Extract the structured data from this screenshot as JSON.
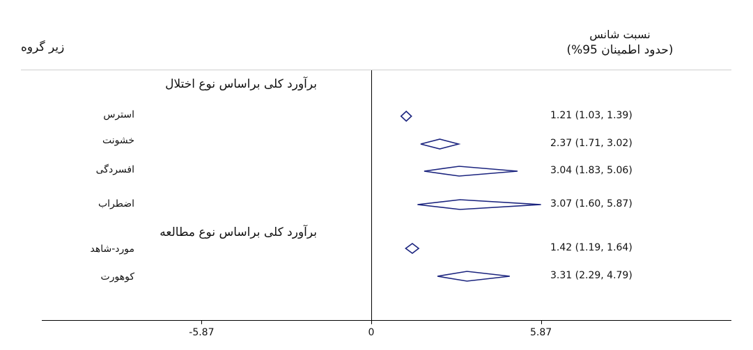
{
  "header": {
    "subgroup": "زیر گروه",
    "odds_ratio_line1": "نسبت شانس",
    "odds_ratio_line2": "(حدود اطمینان 95%)"
  },
  "chart_data": {
    "type": "forest",
    "null_value": 0,
    "xlim": [
      -10.8,
      11.1
    ],
    "x_ticks": [
      -5.87,
      0,
      5.87
    ],
    "x_tick_labels": [
      "-5.87",
      "0",
      "5.87"
    ],
    "rows": [
      {
        "kind": "section",
        "label": "برآورد کلی براساس نوع اختلال"
      },
      {
        "kind": "item",
        "label": "استرس",
        "or": 1.21,
        "lower": 1.03,
        "upper": 1.39,
        "text": "1.21 (1.03, 1.39)"
      },
      {
        "kind": "item",
        "label": "خشونت",
        "or": 2.37,
        "lower": 1.71,
        "upper": 3.02,
        "text": "2.37 (1.71, 3.02)"
      },
      {
        "kind": "item",
        "label": "افسردگی",
        "or": 3.04,
        "lower": 1.83,
        "upper": 5.06,
        "text": "3.04 (1.83, 5.06)"
      },
      {
        "kind": "item",
        "label": "اضطراب",
        "or": 3.07,
        "lower": 1.6,
        "upper": 5.87,
        "text": "3.07 (1.60, 5.87)"
      },
      {
        "kind": "section",
        "label": "برآورد کلی براساس نوع مطالعه"
      },
      {
        "kind": "item",
        "label": "مورد-شاهد",
        "or": 1.42,
        "lower": 1.19,
        "upper": 1.64,
        "text": "1.42 (1.19, 1.64)"
      },
      {
        "kind": "item",
        "label": "کوهورت",
        "or": 3.31,
        "lower": 2.29,
        "upper": 4.79,
        "text": "3.31 (2.29, 4.79)"
      }
    ]
  },
  "colors": {
    "diamond": "#1a237e",
    "axis": "#000000",
    "rule": "#cfcfcf",
    "text": "#111111"
  }
}
